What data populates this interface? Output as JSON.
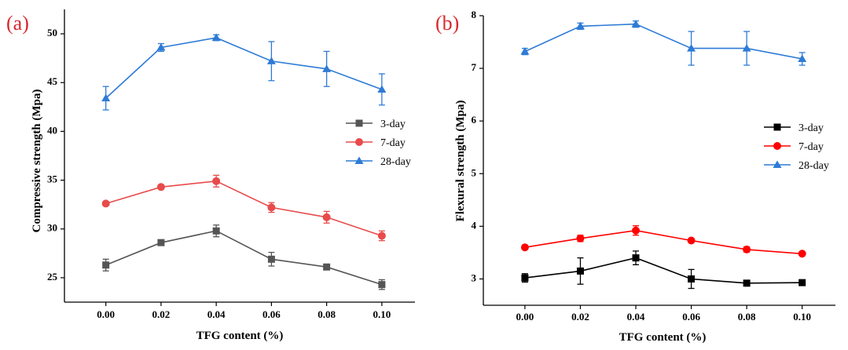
{
  "chart_data": [
    {
      "type": "line",
      "panel_label": "(a)",
      "title": "",
      "xlabel": "TFG content (%)",
      "ylabel": "Compressive strength (Mpa)",
      "x": [
        0.0,
        0.02,
        0.04,
        0.06,
        0.08,
        0.1
      ],
      "x_tick_labels": [
        "0.00",
        "0.02",
        "0.04",
        "0.06",
        "0.08",
        "0.10"
      ],
      "xlim": [
        -0.015,
        0.112
      ],
      "ylim": [
        22.5,
        52.5
      ],
      "y_ticks": [
        25,
        30,
        35,
        40,
        45,
        50
      ],
      "y_tick_labels": [
        "25",
        "30",
        "35",
        "40",
        "45",
        "50"
      ],
      "grid": false,
      "legend_position": "center-right",
      "series": [
        {
          "name": "3-day",
          "color": "#555555",
          "marker": "square",
          "values": [
            26.3,
            28.6,
            29.8,
            26.9,
            26.1,
            24.3
          ],
          "errors": [
            0.6,
            0.2,
            0.6,
            0.7,
            0.2,
            0.5
          ]
        },
        {
          "name": "7-day",
          "color": "#e84b4b",
          "marker": "circle",
          "values": [
            32.6,
            34.3,
            34.9,
            32.2,
            31.2,
            29.3
          ],
          "errors": [
            0.2,
            0.2,
            0.6,
            0.5,
            0.6,
            0.5
          ]
        },
        {
          "name": "28-day",
          "color": "#2e7bd6",
          "marker": "triangle",
          "values": [
            43.4,
            48.6,
            49.6,
            47.2,
            46.4,
            44.3
          ],
          "errors": [
            1.2,
            0.4,
            0.3,
            2.0,
            1.8,
            1.6
          ]
        }
      ]
    },
    {
      "type": "line",
      "panel_label": "(b)",
      "title": "",
      "xlabel": "TFG content (%)",
      "ylabel": "Flexural strength (Mpa)",
      "x": [
        0.0,
        0.02,
        0.04,
        0.06,
        0.08,
        0.1
      ],
      "x_tick_labels": [
        "0.00",
        "0.02",
        "0.04",
        "0.06",
        "0.08",
        "0.10"
      ],
      "xlim": [
        -0.015,
        0.112
      ],
      "ylim": [
        2.5,
        8.0
      ],
      "y_ticks": [
        3,
        4,
        5,
        6,
        7,
        8
      ],
      "y_tick_labels": [
        "3",
        "4",
        "5",
        "6",
        "7",
        "8"
      ],
      "grid": false,
      "legend_position": "center-right",
      "series": [
        {
          "name": "3-day",
          "color": "#000000",
          "marker": "square",
          "values": [
            3.02,
            3.15,
            3.4,
            3.0,
            2.92,
            2.93
          ],
          "errors": [
            0.08,
            0.25,
            0.13,
            0.18,
            0.05,
            0.04
          ]
        },
        {
          "name": "7-day",
          "color": "#ff0000",
          "marker": "circle",
          "values": [
            3.6,
            3.77,
            3.92,
            3.73,
            3.56,
            3.48
          ],
          "errors": [
            0.03,
            0.06,
            0.09,
            0.03,
            0.05,
            0.03
          ]
        },
        {
          "name": "28-day",
          "color": "#2e7bd6",
          "marker": "triangle",
          "values": [
            7.32,
            7.8,
            7.84,
            7.38,
            7.38,
            7.18
          ],
          "errors": [
            0.06,
            0.06,
            0.06,
            0.32,
            0.32,
            0.12
          ]
        }
      ]
    }
  ]
}
